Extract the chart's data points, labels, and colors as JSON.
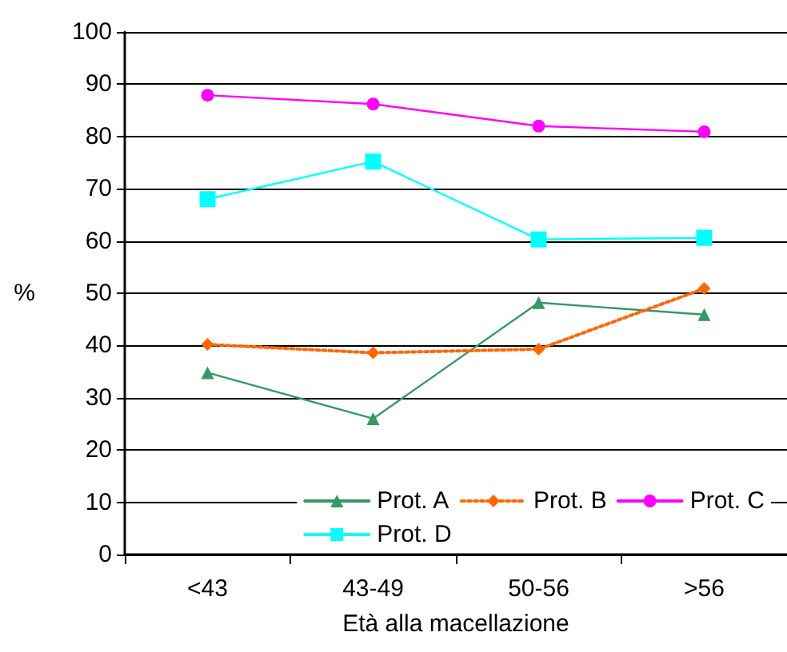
{
  "chart_data": {
    "type": "line",
    "xlabel": "Età alla macellazione",
    "ylabel": "%",
    "categories": [
      "<43",
      "43-49",
      "50-56",
      ">56"
    ],
    "series": [
      {
        "name": "Prot. A",
        "color": "#339966",
        "marker": "triangle",
        "line_style": "solid",
        "values": [
          34.8,
          26,
          48.2,
          45.9
        ]
      },
      {
        "name": "Prot. B",
        "color": "#ff6600",
        "marker": "diamond",
        "line_style": "dotted",
        "values": [
          40.2,
          38.6,
          39.3,
          50.9
        ]
      },
      {
        "name": "Prot. C",
        "color": "#ff00ff",
        "marker": "circle",
        "line_style": "solid",
        "values": [
          87.9,
          86.2,
          82,
          80.9
        ]
      },
      {
        "name": "Prot. D",
        "color": "#00ffff",
        "marker": "square",
        "line_style": "solid",
        "values": [
          68,
          75.2,
          60.3,
          60.6
        ]
      }
    ],
    "ylim": [
      0,
      100
    ],
    "yticks": [
      0,
      10,
      20,
      30,
      40,
      50,
      60,
      70,
      80,
      90,
      100
    ],
    "grid": "y",
    "legend": "bottom right"
  }
}
